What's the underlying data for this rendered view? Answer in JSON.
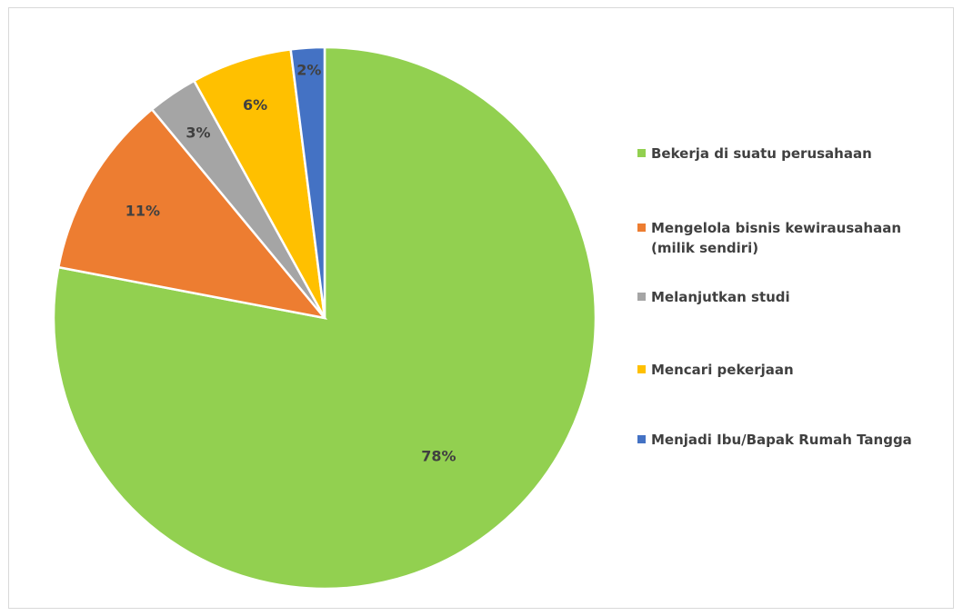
{
  "chart_data": {
    "type": "pie",
    "title": "",
    "categories": [
      "Bekerja di suatu perusahaan",
      "Mengelola bisnis kewirausahaan (milik sendiri)",
      "Melanjutkan studi",
      "Mencari pekerjaan",
      "Menjadi Ibu/Bapak Rumah Tangga"
    ],
    "values": [
      78,
      11,
      3,
      6,
      2
    ],
    "data_labels": [
      "78%",
      "11%",
      "3%",
      "6%",
      "2%"
    ],
    "colors": [
      "#92d050",
      "#ed7d31",
      "#a5a5a5",
      "#ffc000",
      "#4472c4"
    ],
    "legend_position": "right",
    "start_angle": "12 o'clock, clockwise"
  }
}
